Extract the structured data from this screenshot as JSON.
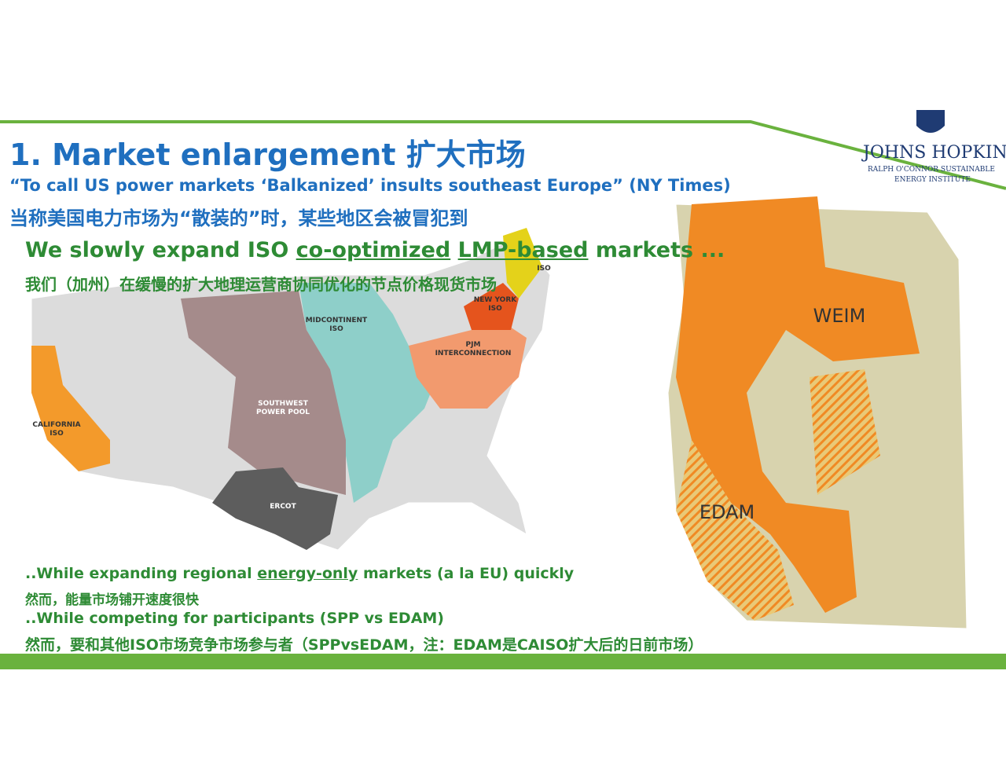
{
  "header": {
    "title": "1. Market enlargement 扩大市场",
    "quote": "“To call US power markets ‘Balkanized’ insults southeast Europe” (NY Times)",
    "quote_zh": "当称美国电力市场为“散装的”时，某些地区会被冒犯到"
  },
  "logo": {
    "name": "JOHNS HOPKINS",
    "line1": "RALPH O'CONNOR SUSTAINABLE",
    "line2": "ENERGY INSTITUTE"
  },
  "point1": {
    "parts": [
      "We slowly expand ISO ",
      "co-optimized",
      " ",
      "LMP-based",
      " markets ..."
    ],
    "zh": "我们（加州）在缓慢的扩大地理运营商协同优化的节点价格现货市场"
  },
  "us_map": {
    "labels": {
      "miso": [
        "MIDCONTINENT",
        "ISO"
      ],
      "nyiso": [
        "NEW YORK",
        "ISO"
      ],
      "isone": [
        "ISO"
      ],
      "pjm": [
        "PJM",
        "INTERCONNECTION"
      ],
      "spp": [
        "SOUTHWEST",
        "POWER POOL"
      ],
      "caiso": [
        "CALIFORNIA",
        "ISO"
      ],
      "ercot": [
        "ERCOT"
      ]
    }
  },
  "west_map": {
    "labels": {
      "weim": "WEIM",
      "edam": "EDAM"
    }
  },
  "bottom": {
    "line1": [
      "..While expanding regional ",
      "energy-only",
      " markets (a la EU) quickly"
    ],
    "line1_zh": "然而，能量市场铺开速度很快",
    "line2": "..While competing for participants (SPP vs EDAM)",
    "line2_zh": "然而，要和其他ISO市场竞争市场参与者（SPPvsEDAM，注：EDAM是CAISO扩大后的日前市场）"
  }
}
